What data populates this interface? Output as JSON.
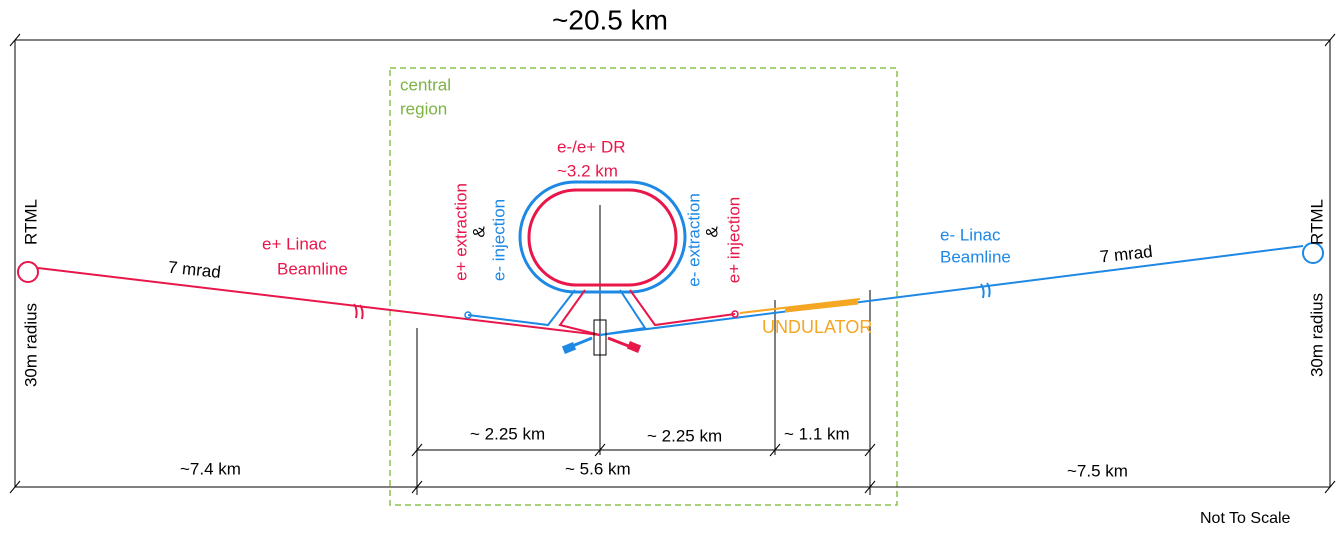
{
  "title": "~20.5 km",
  "central_region": [
    "central",
    "region"
  ],
  "damping_ring": {
    "name": "e-/e+  DR",
    "length": "~3.2 km"
  },
  "left_injection": {
    "line1": "e+ extraction",
    "amp": "&",
    "line2": "e-  injection"
  },
  "right_injection": {
    "line1": "e- extraction",
    "amp": "&",
    "line2": "e+ injection"
  },
  "left_rtml": {
    "name": "RTML",
    "radius": "30m radius"
  },
  "right_rtml": {
    "name": "RTML",
    "radius": "30m radius"
  },
  "positron_linac": [
    "e+ Linac",
    "Beamline"
  ],
  "electron_linac": [
    "e- Linac",
    "Beamline"
  ],
  "left_angle": "7 mrad",
  "right_angle": "7 mrad",
  "undulator": "UNDULATOR",
  "distances": {
    "left_inner": "~ 2.25 km",
    "right_inner": "~ 2.25 km",
    "undulator_span": "~ 1.1 km",
    "central": "~ 5.6 km",
    "left_outer": "~7.4 km",
    "right_outer": "~7.5 km"
  },
  "note": "Not To Scale"
}
